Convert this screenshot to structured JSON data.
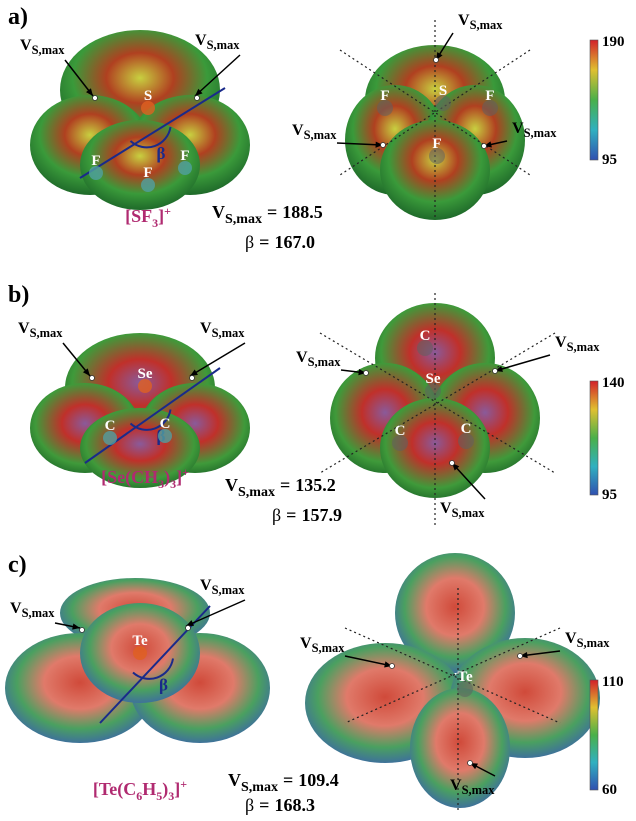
{
  "symbols": {
    "V": "V",
    "vs_sub": "S,max",
    "beta": "β",
    "equals": "="
  },
  "panels": [
    {
      "label": "a)",
      "formula": [
        "[SF",
        "3",
        "]",
        "+"
      ],
      "vs_max": "188.5",
      "beta": "167.0",
      "colorbar": {
        "max": 190,
        "min": 95
      },
      "left_atoms": [
        "S",
        "F",
        "F",
        "F"
      ],
      "right_atoms": [
        "S",
        "F",
        "F",
        "F"
      ]
    },
    {
      "label": "b)",
      "formula": [
        "[Se(CH",
        "3",
        ")",
        "3",
        "]",
        "+"
      ],
      "vs_max": "135.2",
      "beta": "157.9",
      "colorbar": {
        "max": 140,
        "min": 95
      },
      "left_atoms": [
        "Se",
        "C",
        "C"
      ],
      "right_atoms": [
        "C",
        "Se",
        "C",
        "C"
      ]
    },
    {
      "label": "c)",
      "formula": [
        "[Te(C",
        "6",
        "H",
        "5",
        ")",
        "3",
        "]",
        "+"
      ],
      "vs_max": "109.4",
      "beta": "168.3",
      "colorbar": {
        "max": 110,
        "min": 60
      },
      "left_atoms": [
        "Te"
      ],
      "right_atoms": [
        "Te"
      ]
    }
  ]
}
